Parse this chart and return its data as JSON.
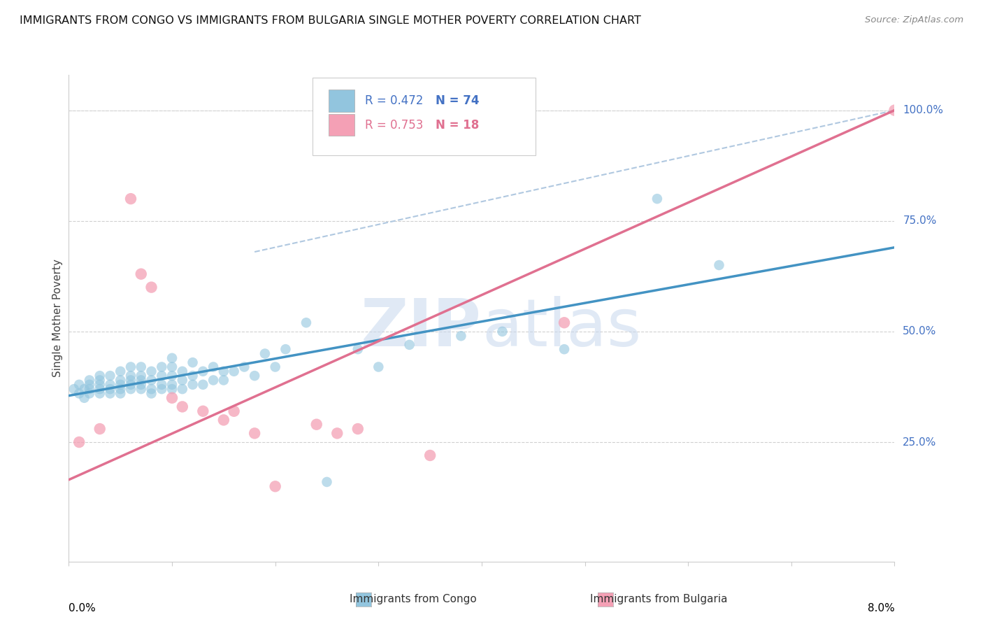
{
  "title": "IMMIGRANTS FROM CONGO VS IMMIGRANTS FROM BULGARIA SINGLE MOTHER POVERTY CORRELATION CHART",
  "source": "Source: ZipAtlas.com",
  "ylabel": "Single Mother Poverty",
  "right_yticks": [
    "100.0%",
    "75.0%",
    "50.0%",
    "25.0%"
  ],
  "right_ytick_vals": [
    1.0,
    0.75,
    0.5,
    0.25
  ],
  "congo_R": 0.472,
  "congo_N": 74,
  "bulgaria_R": 0.753,
  "bulgaria_N": 18,
  "congo_color": "#92c5de",
  "bulgaria_color": "#f4a0b5",
  "congo_line_color": "#4393c3",
  "bulgaria_line_color": "#e07090",
  "dashed_line_color": "#b0c8e0",
  "xlim": [
    0.0,
    0.08
  ],
  "ylim": [
    -0.02,
    1.08
  ],
  "congo_x": [
    0.0005,
    0.001,
    0.001,
    0.0015,
    0.0015,
    0.002,
    0.002,
    0.002,
    0.002,
    0.003,
    0.003,
    0.003,
    0.003,
    0.003,
    0.004,
    0.004,
    0.004,
    0.004,
    0.005,
    0.005,
    0.005,
    0.005,
    0.005,
    0.006,
    0.006,
    0.006,
    0.006,
    0.006,
    0.007,
    0.007,
    0.007,
    0.007,
    0.007,
    0.008,
    0.008,
    0.008,
    0.008,
    0.009,
    0.009,
    0.009,
    0.009,
    0.01,
    0.01,
    0.01,
    0.01,
    0.01,
    0.011,
    0.011,
    0.011,
    0.012,
    0.012,
    0.012,
    0.013,
    0.013,
    0.014,
    0.014,
    0.015,
    0.015,
    0.016,
    0.017,
    0.018,
    0.019,
    0.02,
    0.021,
    0.023,
    0.025,
    0.028,
    0.03,
    0.033,
    0.038,
    0.042,
    0.048,
    0.057,
    0.063
  ],
  "congo_y": [
    0.37,
    0.36,
    0.38,
    0.35,
    0.37,
    0.36,
    0.37,
    0.38,
    0.39,
    0.36,
    0.37,
    0.38,
    0.39,
    0.4,
    0.36,
    0.37,
    0.38,
    0.4,
    0.36,
    0.37,
    0.38,
    0.39,
    0.41,
    0.37,
    0.38,
    0.39,
    0.4,
    0.42,
    0.37,
    0.38,
    0.39,
    0.4,
    0.42,
    0.36,
    0.37,
    0.39,
    0.41,
    0.37,
    0.38,
    0.4,
    0.42,
    0.37,
    0.38,
    0.4,
    0.42,
    0.44,
    0.37,
    0.39,
    0.41,
    0.38,
    0.4,
    0.43,
    0.38,
    0.41,
    0.39,
    0.42,
    0.39,
    0.41,
    0.41,
    0.42,
    0.4,
    0.45,
    0.42,
    0.46,
    0.52,
    0.16,
    0.46,
    0.42,
    0.47,
    0.49,
    0.5,
    0.46,
    0.8,
    0.65
  ],
  "bulgaria_x": [
    0.001,
    0.003,
    0.006,
    0.007,
    0.008,
    0.01,
    0.011,
    0.013,
    0.015,
    0.016,
    0.018,
    0.02,
    0.024,
    0.026,
    0.028,
    0.035,
    0.048,
    0.08
  ],
  "bulgaria_y": [
    0.25,
    0.28,
    0.8,
    0.63,
    0.6,
    0.35,
    0.33,
    0.32,
    0.3,
    0.32,
    0.27,
    0.15,
    0.29,
    0.27,
    0.28,
    0.22,
    0.52,
    1.0
  ],
  "congo_trend": [
    0.0,
    0.355,
    0.08,
    0.69
  ],
  "bulgaria_trend": [
    0.0,
    0.165,
    0.08,
    1.0
  ],
  "dashed_trend": [
    0.018,
    0.68,
    0.08,
    1.0
  ]
}
